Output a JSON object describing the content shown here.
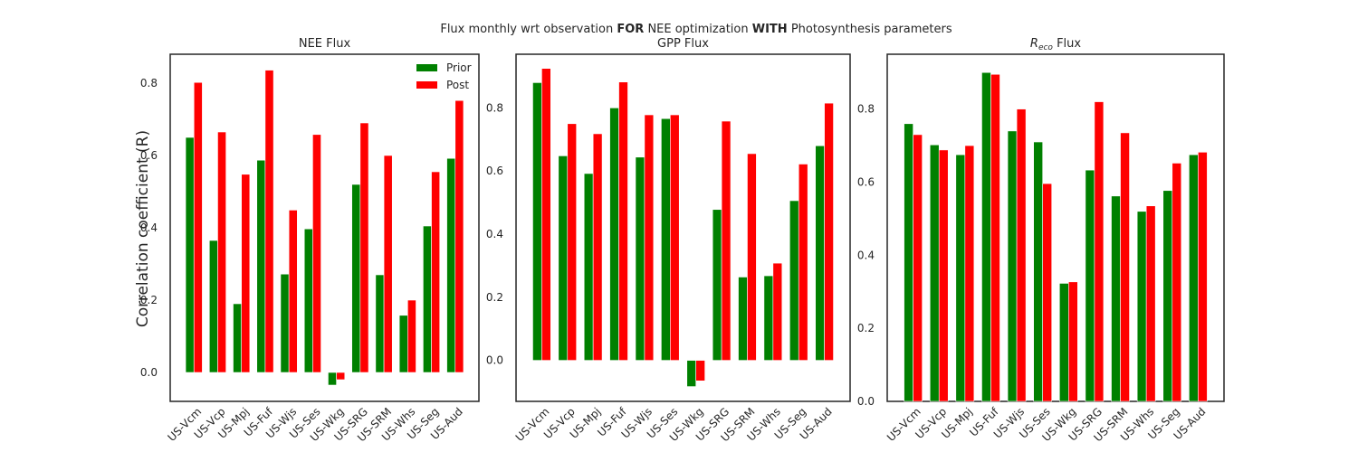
{
  "figure": {
    "suptitle_parts": [
      {
        "text": "Flux monthly wrt observation ",
        "bold": false
      },
      {
        "text": "FOR",
        "bold": true
      },
      {
        "text": " NEE optimization ",
        "bold": false
      },
      {
        "text": "WITH",
        "bold": true
      },
      {
        "text": " Photosynthesis parameters",
        "bold": false
      }
    ],
    "ylabel": "Correlation coefficient (R)"
  },
  "colors": {
    "prior": "#008000",
    "post": "#ff0000",
    "frame": "#262626"
  },
  "chart_data": [
    {
      "type": "bar",
      "title": "NEE Flux",
      "title_sub": "",
      "title_rest": "",
      "categories": [
        "US-Vcm",
        "US-Vcp",
        "US-Mpj",
        "US-Fuf",
        "US-Wjs",
        "US-Ses",
        "US-Wkg",
        "US-SRG",
        "US-SRM",
        "US-Whs",
        "US-Seg",
        "US-Aud"
      ],
      "series": [
        {
          "name": "Prior",
          "values": [
            0.65,
            0.365,
            0.19,
            0.587,
            0.272,
            0.397,
            -0.035,
            0.52,
            0.27,
            0.158,
            0.405,
            0.592
          ]
        },
        {
          "name": "Post",
          "values": [
            0.802,
            0.665,
            0.548,
            0.836,
            0.449,
            0.658,
            -0.02,
            0.69,
            0.6,
            0.2,
            0.555,
            0.752
          ]
        }
      ],
      "ylim": [
        -0.08,
        0.88
      ],
      "yticks": [
        0.0,
        0.2,
        0.4,
        0.6,
        0.8
      ],
      "legend": "top-right",
      "grid": false
    },
    {
      "type": "bar",
      "title": "GPP Flux",
      "title_sub": "",
      "title_rest": "",
      "categories": [
        "US-Vcm",
        "US-Vcp",
        "US-Mpj",
        "US-Fuf",
        "US-Wjs",
        "US-Ses",
        "US-Wkg",
        "US-SRG",
        "US-SRM",
        "US-Whs",
        "US-Seg",
        "US-Aud"
      ],
      "series": [
        {
          "name": "Prior",
          "values": [
            0.88,
            0.648,
            0.592,
            0.8,
            0.644,
            0.766,
            -0.083,
            0.478,
            0.264,
            0.268,
            0.506,
            0.68
          ]
        },
        {
          "name": "Post",
          "values": [
            0.925,
            0.75,
            0.718,
            0.882,
            0.778,
            0.778,
            -0.065,
            0.758,
            0.655,
            0.308,
            0.622,
            0.815
          ]
        }
      ],
      "ylim": [
        -0.13,
        0.97
      ],
      "yticks": [
        0.0,
        0.2,
        0.4,
        0.6,
        0.8
      ],
      "grid": false
    },
    {
      "type": "bar",
      "title": "",
      "title_main": "R",
      "title_sub": "eco",
      "title_rest": " Flux",
      "categories": [
        "US-Vcm",
        "US-Vcp",
        "US-Mpj",
        "US-Fuf",
        "US-Wjs",
        "US-Ses",
        "US-Wkg",
        "US-SRG",
        "US-SRM",
        "US-Whs",
        "US-Seg",
        "US-Aud"
      ],
      "series": [
        {
          "name": "Prior",
          "values": [
            0.76,
            0.702,
            0.675,
            0.9,
            0.74,
            0.71,
            0.323,
            0.633,
            0.562,
            0.52,
            0.577,
            0.675
          ]
        },
        {
          "name": "Post",
          "values": [
            0.73,
            0.688,
            0.7,
            0.895,
            0.8,
            0.596,
            0.327,
            0.82,
            0.735,
            0.535,
            0.652,
            0.682
          ]
        }
      ],
      "ylim": [
        0.0,
        0.95
      ],
      "yticks": [
        0.0,
        0.2,
        0.4,
        0.6,
        0.8
      ],
      "grid": false
    }
  ]
}
